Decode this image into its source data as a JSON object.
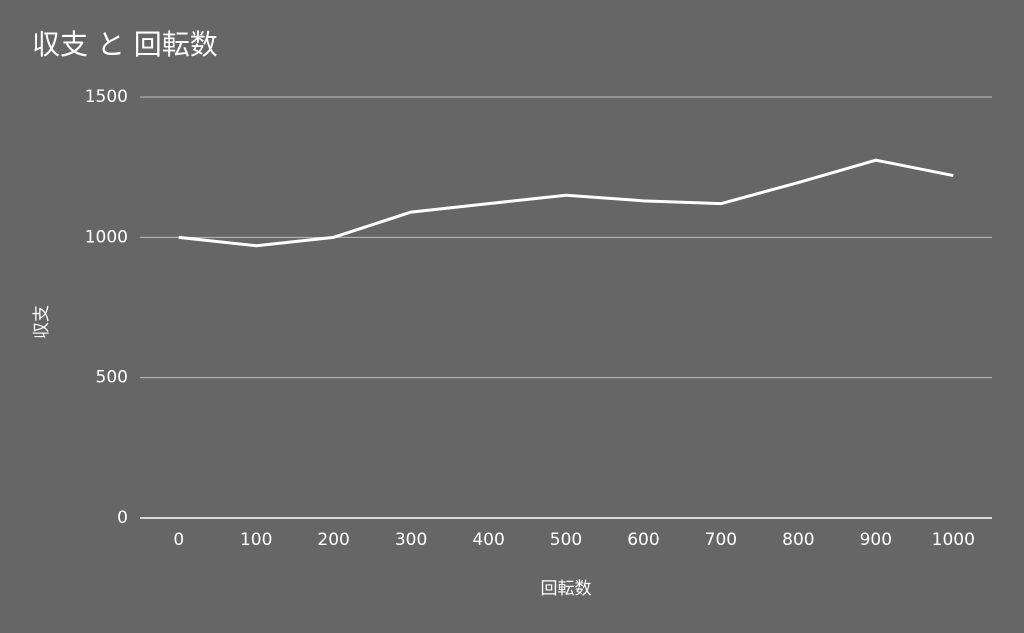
{
  "chart_data": {
    "type": "line",
    "title": "収支 と 回転数",
    "x_label": "回転数",
    "y_label": "収支",
    "categories": [
      "0",
      "100",
      "200",
      "300",
      "400",
      "500",
      "600",
      "700",
      "800",
      "900",
      "1000"
    ],
    "values": [
      1000,
      970,
      1000,
      1090,
      1120,
      1150,
      1130,
      1120,
      1195,
      1275,
      1220
    ],
    "color": "#ffffff",
    "ylim": [
      0,
      1500
    ],
    "yticks": [
      0,
      500,
      1000,
      1500
    ],
    "grid": true
  }
}
